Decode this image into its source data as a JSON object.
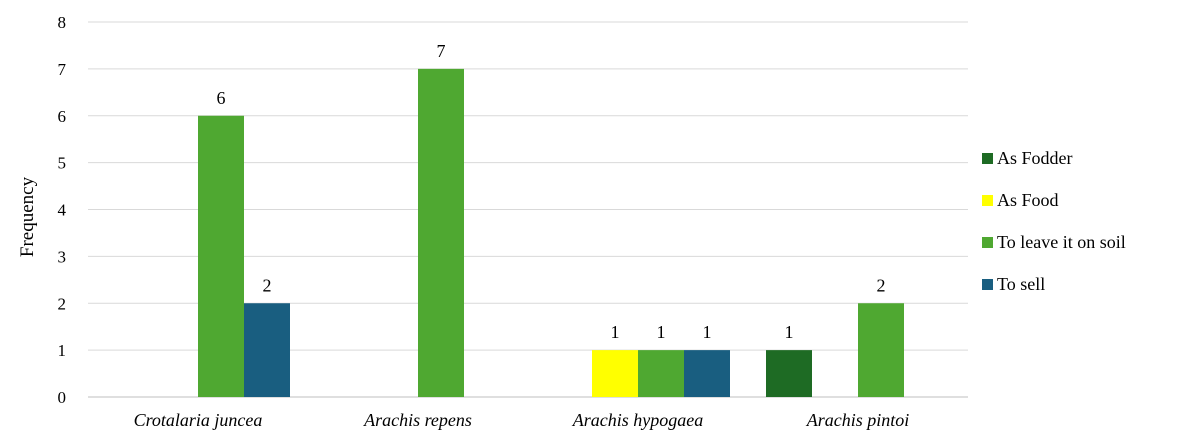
{
  "chart_data": {
    "type": "bar",
    "categories": [
      "Crotalaria juncea",
      "Arachis repens",
      "Arachis hypogaea",
      "Arachis pintoi"
    ],
    "series": [
      {
        "name": "As Fodder",
        "color": "#1e6b24",
        "values": [
          0,
          0,
          0,
          1
        ]
      },
      {
        "name": "As Food",
        "color": "#ffff00",
        "values": [
          0,
          0,
          1,
          0
        ]
      },
      {
        "name": "To leave it on soil",
        "color": "#4fa831",
        "values": [
          6,
          7,
          1,
          2
        ]
      },
      {
        "name": "To sell",
        "color": "#195e80",
        "values": [
          2,
          0,
          1,
          0
        ]
      }
    ],
    "ylabel": "Frequency",
    "xlabel": "",
    "title": "",
    "ylim": [
      0,
      8
    ],
    "yticks": [
      0,
      1,
      2,
      3,
      4,
      5,
      6,
      7,
      8
    ],
    "grid": true,
    "legend_position": "right"
  }
}
